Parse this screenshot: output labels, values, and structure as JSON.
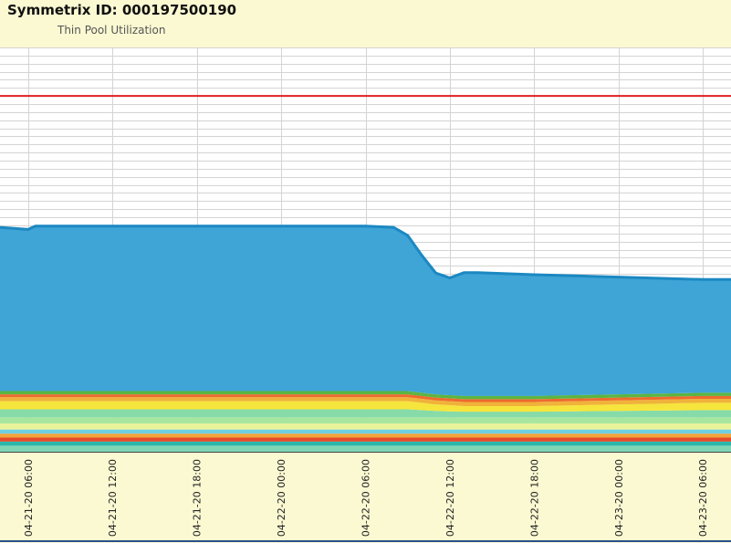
{
  "header": {
    "title": "Symmetrix ID: 000197500190",
    "subtitle": "Thin Pool Utilization"
  },
  "colors": {
    "background": "#fbf9d2",
    "plot_background": "#ffffff",
    "grid": "#d4d4d4",
    "threshold": "#e02020",
    "primary_series": "#3fa4d6",
    "primary_series_edge": "#1b88c2"
  },
  "chart_data": {
    "type": "area",
    "stacked": true,
    "title": "Thin Pool Utilization",
    "xlabel": "",
    "ylabel": "",
    "ylim": [
      0,
      100
    ],
    "grid": true,
    "x_ticks": [
      "04-21-20 06:00",
      "04-21-20 12:00",
      "04-21-20 18:00",
      "04-22-20 00:00",
      "04-22-20 06:00",
      "04-22-20 12:00",
      "04-22-20 18:00",
      "04-23-20 00:00",
      "04-23-20 06:00"
    ],
    "x_range": [
      "04-21-20 04:00",
      "04-23-20 08:00"
    ],
    "threshold_value": 88,
    "x_times": [
      "04-21-20 04:00",
      "04-21-20 06:00",
      "04-21-20 06:30",
      "04-21-20 12:00",
      "04-21-20 18:00",
      "04-21-20 20:00",
      "04-22-20 00:00",
      "04-22-20 06:00",
      "04-22-20 08:00",
      "04-22-20 09:00",
      "04-22-20 10:00",
      "04-22-20 11:00",
      "04-22-20 12:00",
      "04-22-20 13:00",
      "04-22-20 14:00",
      "04-22-20 18:00",
      "04-23-20 00:00",
      "04-23-20 06:00",
      "04-23-20 08:00"
    ],
    "series": [
      {
        "color": "#7fd6b4",
        "values": [
          1.5,
          1.5,
          1.5,
          1.5,
          1.5,
          1.5,
          1.5,
          1.5,
          1.5,
          1.5,
          1.5,
          1.5,
          1.5,
          1.5,
          1.5,
          1.5,
          1.5,
          1.5,
          1.5
        ]
      },
      {
        "color": "#2ab7a9",
        "values": [
          1,
          1,
          1,
          1,
          1,
          1,
          1,
          1,
          1,
          1,
          1,
          1,
          1,
          1,
          1,
          1,
          1,
          1,
          1
        ]
      },
      {
        "color": "#e34b2c",
        "values": [
          1,
          1,
          1,
          1,
          1,
          1,
          1,
          1,
          1,
          1,
          1,
          1,
          1,
          1,
          1,
          1,
          1,
          1,
          1
        ]
      },
      {
        "color": "#f2a53a",
        "values": [
          1,
          1,
          1,
          1,
          1,
          1,
          1,
          1,
          1,
          1,
          1,
          1,
          1,
          1,
          1,
          1,
          1,
          1,
          1
        ]
      },
      {
        "color": "#6fd0e4",
        "values": [
          1,
          1,
          1,
          1,
          1,
          1,
          1,
          1,
          1,
          1,
          1,
          1,
          1,
          1,
          1,
          1,
          1,
          1,
          1
        ]
      },
      {
        "color": "#e9f39a",
        "values": [
          1.5,
          1.5,
          1.5,
          1.5,
          1.5,
          1.5,
          1.5,
          1.5,
          1.5,
          1.5,
          1.5,
          1.5,
          1.5,
          1.5,
          1.5,
          1.5,
          1.5,
          1.5,
          1.5
        ]
      },
      {
        "color": "#a8e6a0",
        "values": [
          1.5,
          1.5,
          1.5,
          1.5,
          1.5,
          1.5,
          1.5,
          1.5,
          1.5,
          1.5,
          1.5,
          1.5,
          1.5,
          1.5,
          1.5,
          1.5,
          1.5,
          1.5,
          1.5
        ]
      },
      {
        "color": "#86dba8",
        "values": [
          2,
          2,
          2,
          2,
          2,
          2,
          2,
          2,
          2,
          2,
          1.8,
          1.6,
          1.5,
          1.4,
          1.4,
          1.4,
          1.6,
          1.8,
          1.8
        ]
      },
      {
        "color": "#f6e53c",
        "values": [
          2,
          2,
          2,
          2,
          2,
          2,
          2,
          2,
          2,
          2,
          1.8,
          1.6,
          1.5,
          1.4,
          1.4,
          1.4,
          1.6,
          1.8,
          1.8
        ]
      },
      {
        "color": "#f0b23a",
        "values": [
          1,
          1,
          1,
          1,
          1,
          1,
          1,
          1,
          1,
          1,
          1,
          1,
          1,
          1,
          1,
          1,
          1,
          1,
          1
        ]
      },
      {
        "color": "#ef6a2e",
        "values": [
          0.7,
          0.7,
          0.7,
          0.7,
          0.7,
          0.7,
          0.7,
          0.7,
          0.7,
          0.7,
          0.7,
          0.7,
          0.7,
          0.7,
          0.7,
          0.7,
          0.7,
          0.7,
          0.7
        ]
      },
      {
        "color": "#5cb541",
        "values": [
          0.8,
          0.8,
          0.8,
          0.8,
          0.8,
          0.8,
          0.8,
          0.8,
          0.8,
          0.8,
          0.8,
          0.8,
          0.8,
          0.8,
          0.8,
          0.8,
          0.8,
          0.8,
          0.8
        ]
      },
      {
        "color": "#3fa4d6",
        "values": [
          40.5,
          40,
          40.8,
          40.8,
          40.8,
          40.8,
          40.8,
          40.8,
          40.5,
          38.5,
          34,
          30,
          29,
          30.5,
          30.5,
          30,
          29,
          28,
          28
        ]
      }
    ]
  }
}
